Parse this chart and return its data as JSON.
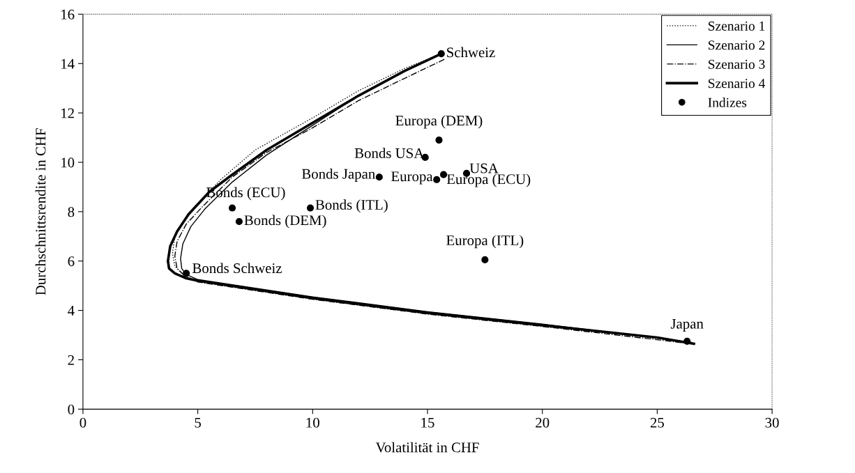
{
  "chart_data": {
    "type": "line",
    "xlabel": "Volatilität in CHF",
    "ylabel": "Durchschnittsrendite in CHF",
    "xlim": [
      0,
      30
    ],
    "xticks": [
      0,
      5,
      10,
      15,
      20,
      25,
      30
    ],
    "ylim": [
      0,
      16
    ],
    "yticks": [
      0,
      2,
      4,
      6,
      8,
      10,
      12,
      14,
      16
    ],
    "grid": false,
    "legend": "top right",
    "series": [
      {
        "name": "Szenario 1",
        "color": "#000000",
        "line_style": "dotted",
        "x": [
          26.5,
          20,
          15,
          10,
          5,
          4.4,
          4.0,
          3.9,
          4.0,
          4.4,
          5.0,
          6.0,
          7.5,
          10,
          12,
          14,
          15.6
        ],
        "values": [
          2.7,
          3.4,
          3.9,
          4.5,
          5.2,
          5.4,
          5.8,
          6.3,
          7.0,
          7.6,
          8.3,
          9.3,
          10.5,
          11.8,
          12.9,
          13.8,
          14.4
        ]
      },
      {
        "name": "Szenario 2",
        "color": "#000000",
        "line_style": "solid",
        "x": [
          26.5,
          20,
          15,
          10,
          5,
          4.5,
          4.3,
          4.25,
          4.35,
          4.7,
          5.3,
          6.5,
          8,
          10,
          12,
          14,
          15.6
        ],
        "values": [
          2.7,
          3.45,
          3.95,
          4.55,
          5.25,
          5.45,
          5.7,
          6.1,
          6.7,
          7.4,
          8.1,
          9.2,
          10.3,
          11.5,
          12.7,
          13.7,
          14.4
        ]
      },
      {
        "name": "Szenario 3",
        "color": "#000000",
        "line_style": "dashdot",
        "x": [
          26.5,
          20,
          15,
          10,
          5,
          4.5,
          4.1,
          4.0,
          4.1,
          4.5,
          5.2,
          6.5,
          8,
          10,
          12,
          14,
          15.8
        ],
        "values": [
          2.65,
          3.35,
          3.85,
          4.45,
          5.15,
          5.35,
          5.7,
          6.2,
          6.8,
          7.5,
          8.2,
          9.4,
          10.4,
          11.4,
          12.5,
          13.4,
          14.2
        ]
      },
      {
        "name": "Szenario 4",
        "color": "#000000",
        "line_style": "solid",
        "x": [
          26.6,
          25,
          20,
          15,
          10,
          5,
          4.5,
          4.0,
          3.75,
          3.7,
          3.8,
          4.1,
          4.6,
          5.5,
          6.5,
          8,
          10,
          12,
          14,
          15.6
        ],
        "values": [
          2.65,
          2.9,
          3.4,
          3.9,
          4.5,
          5.2,
          5.3,
          5.5,
          5.7,
          6.0,
          6.6,
          7.2,
          7.9,
          8.8,
          9.5,
          10.5,
          11.6,
          12.7,
          13.7,
          14.4
        ]
      },
      {
        "name": "Indizes",
        "type": "scatter",
        "marker": "circle",
        "color": "#000000",
        "x": [
          15.6,
          15.5,
          14.9,
          12.9,
          15.4,
          15.7,
          16.7,
          17.5,
          6.5,
          6.8,
          9.9,
          4.5,
          26.3
        ],
        "values": [
          14.4,
          10.9,
          10.2,
          9.4,
          9.3,
          9.5,
          9.55,
          6.05,
          8.15,
          7.6,
          8.15,
          5.5,
          2.75
        ]
      }
    ],
    "annotations": [
      {
        "text": "Schweiz",
        "x": 15.6,
        "y": 14.4
      },
      {
        "text": "Europa (DEM)",
        "x": 15.5,
        "y": 10.9
      },
      {
        "text": "Bonds USA",
        "x": 14.9,
        "y": 10.2
      },
      {
        "text": "Bonds Japan",
        "x": 12.9,
        "y": 9.4
      },
      {
        "text": "Europa",
        "x": 15.4,
        "y": 9.3
      },
      {
        "text": "Europa (ECU)",
        "x": 15.7,
        "y": 9.5
      },
      {
        "text": "USA",
        "x": 16.7,
        "y": 9.55
      },
      {
        "text": "Europa (ITL)",
        "x": 17.5,
        "y": 6.05
      },
      {
        "text": "Bonds (ECU)",
        "x": 6.5,
        "y": 8.15
      },
      {
        "text": "Bonds (DEM)",
        "x": 6.8,
        "y": 7.6
      },
      {
        "text": "Bonds (ITL)",
        "x": 9.9,
        "y": 8.15
      },
      {
        "text": "Bonds Schweiz",
        "x": 4.5,
        "y": 5.5
      },
      {
        "text": "Japan",
        "x": 26.3,
        "y": 2.75
      }
    ]
  }
}
